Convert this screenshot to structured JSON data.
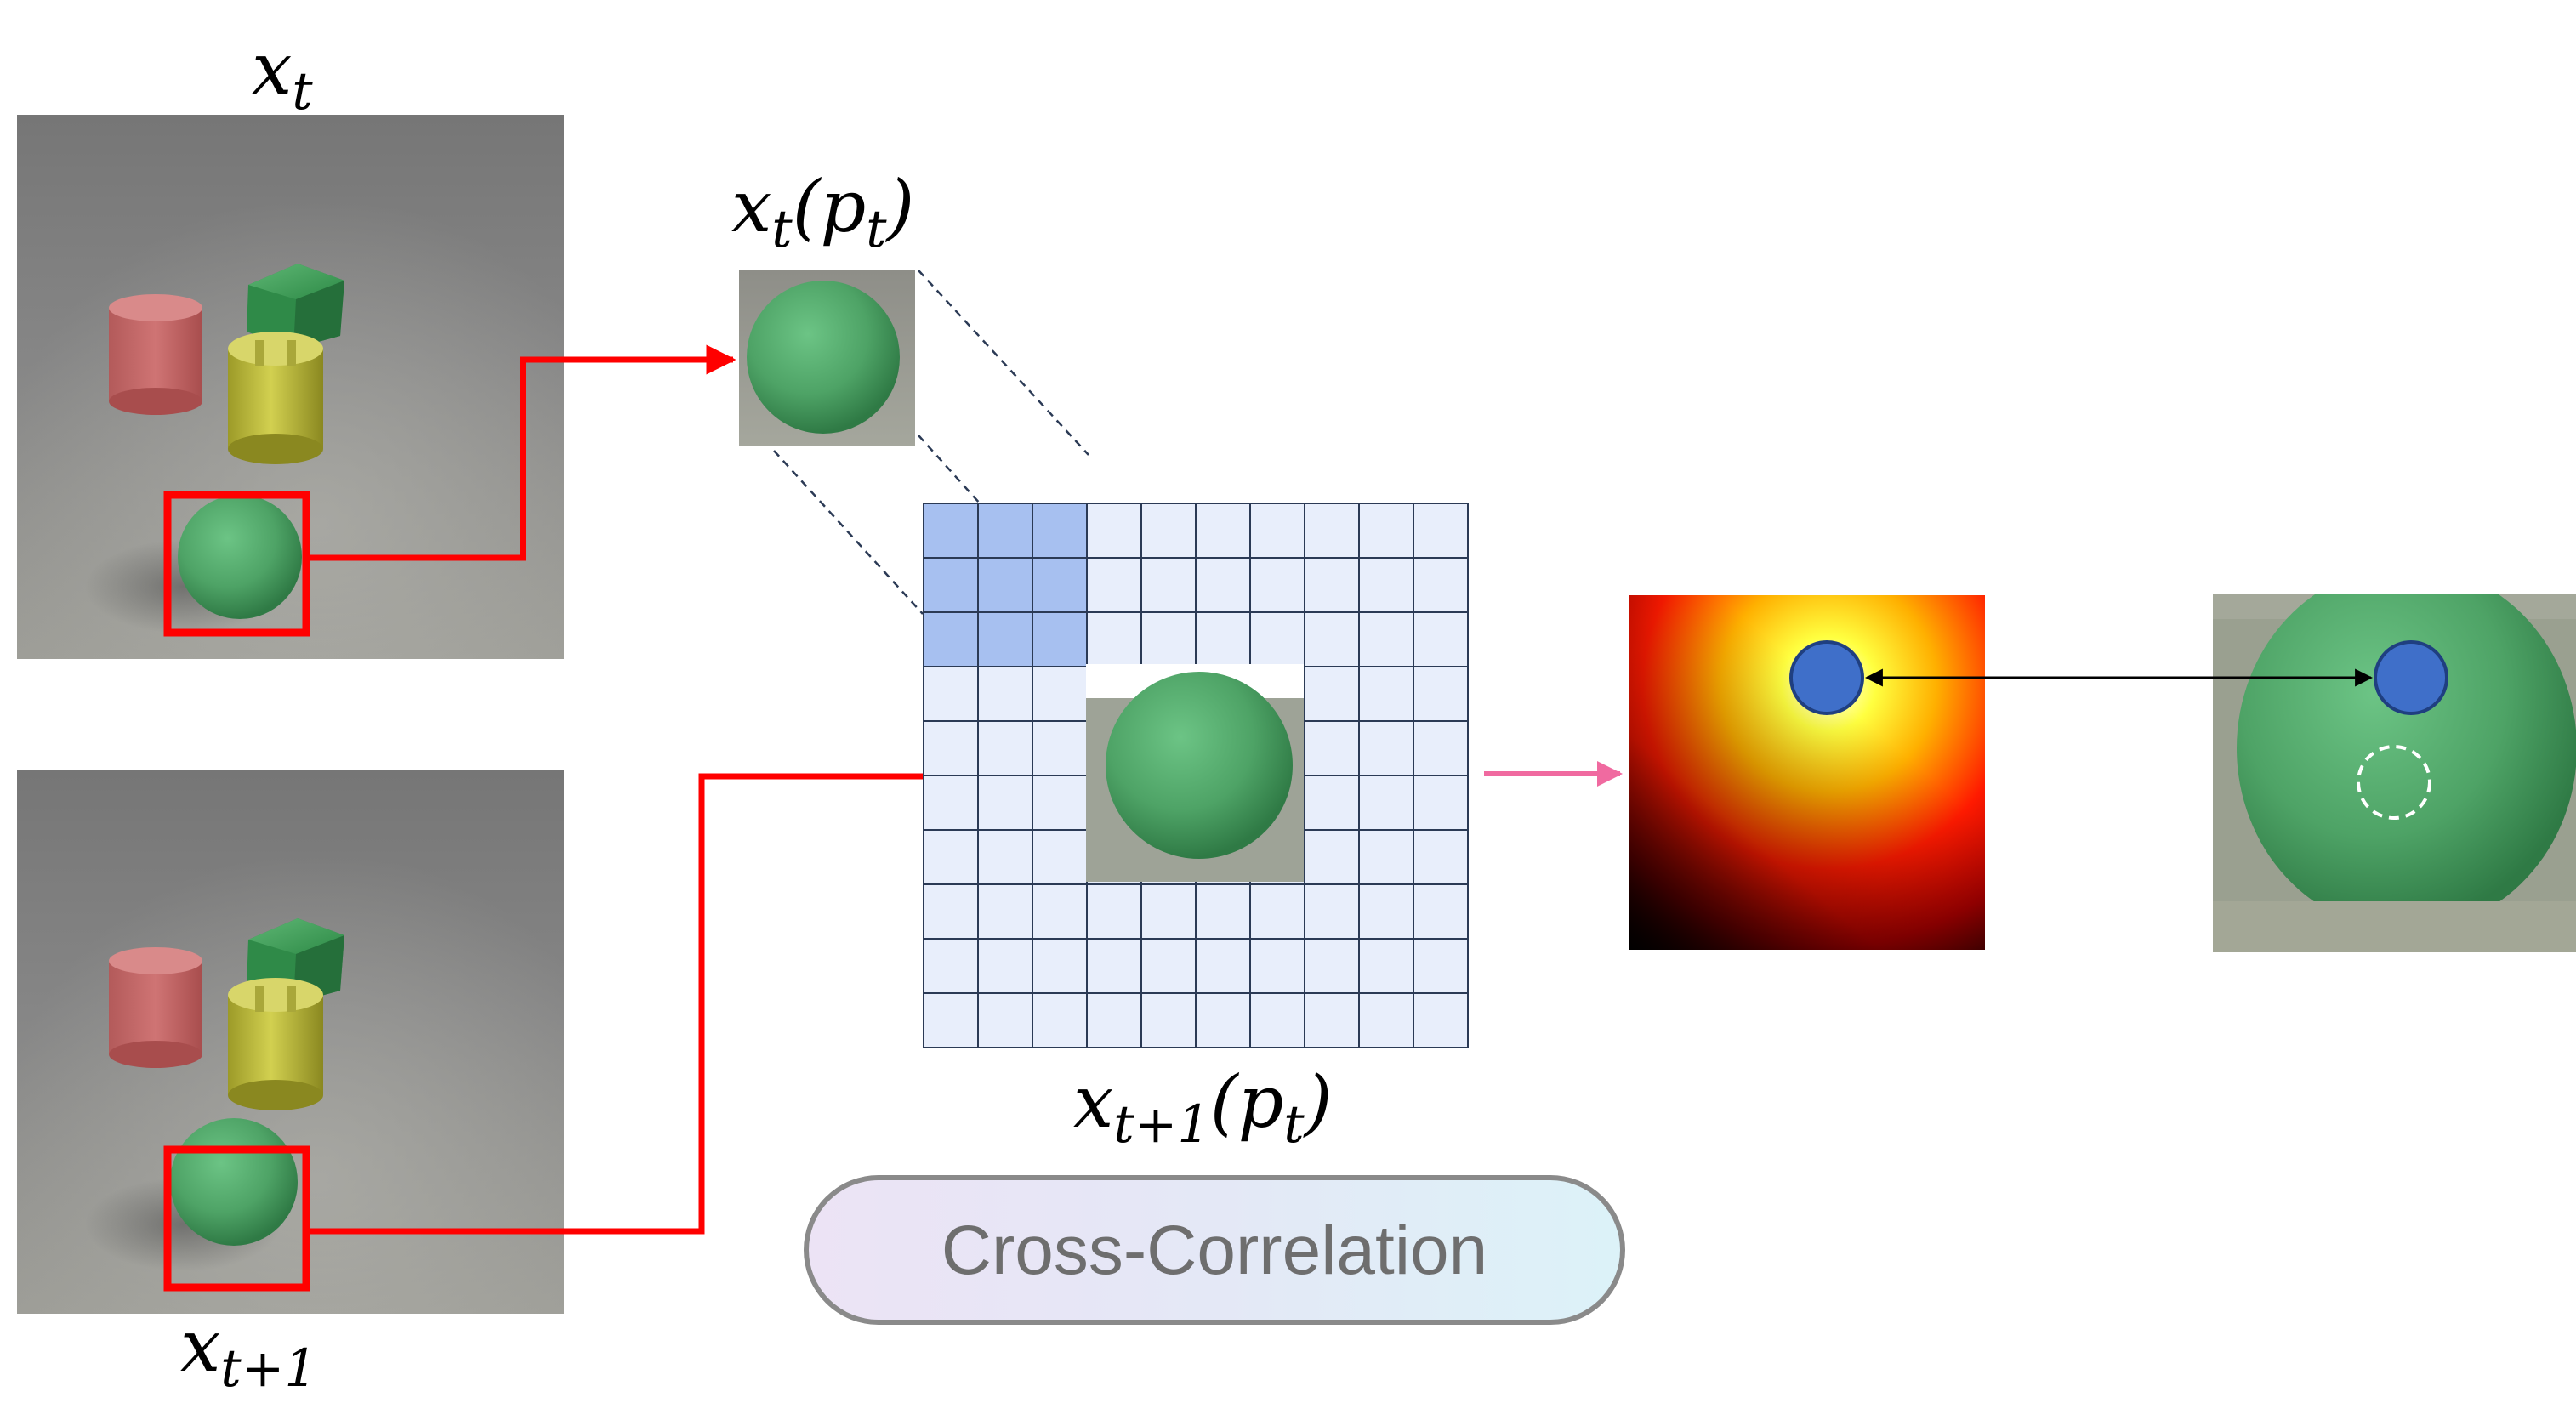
{
  "labels": {
    "xt": "x",
    "xt_sub": "t",
    "xt1": "x",
    "xt1_sub": "t+1",
    "patch": "x",
    "patch_sub": "t",
    "patch_arg": "(p",
    "patch_arg_sub": "t",
    "patch_close": ")",
    "search": "x",
    "search_sub": "t+1",
    "search_arg": "(p",
    "search_arg_sub": "t",
    "search_close": ")"
  },
  "operation": {
    "label": "Cross-Correlation"
  },
  "grid": {
    "rows": 10,
    "cols": 10,
    "highlight_rows": 3,
    "highlight_cols": 3
  },
  "colors": {
    "box_red": "#ff0000",
    "arrow_pink": "#f06aa0",
    "grid_fill": "#e8eefb",
    "grid_highlight": "#a7c0f0",
    "grid_line": "#2b3a55",
    "point_blue": "#3f6fc9",
    "sphere_green": "#4ea366"
  }
}
